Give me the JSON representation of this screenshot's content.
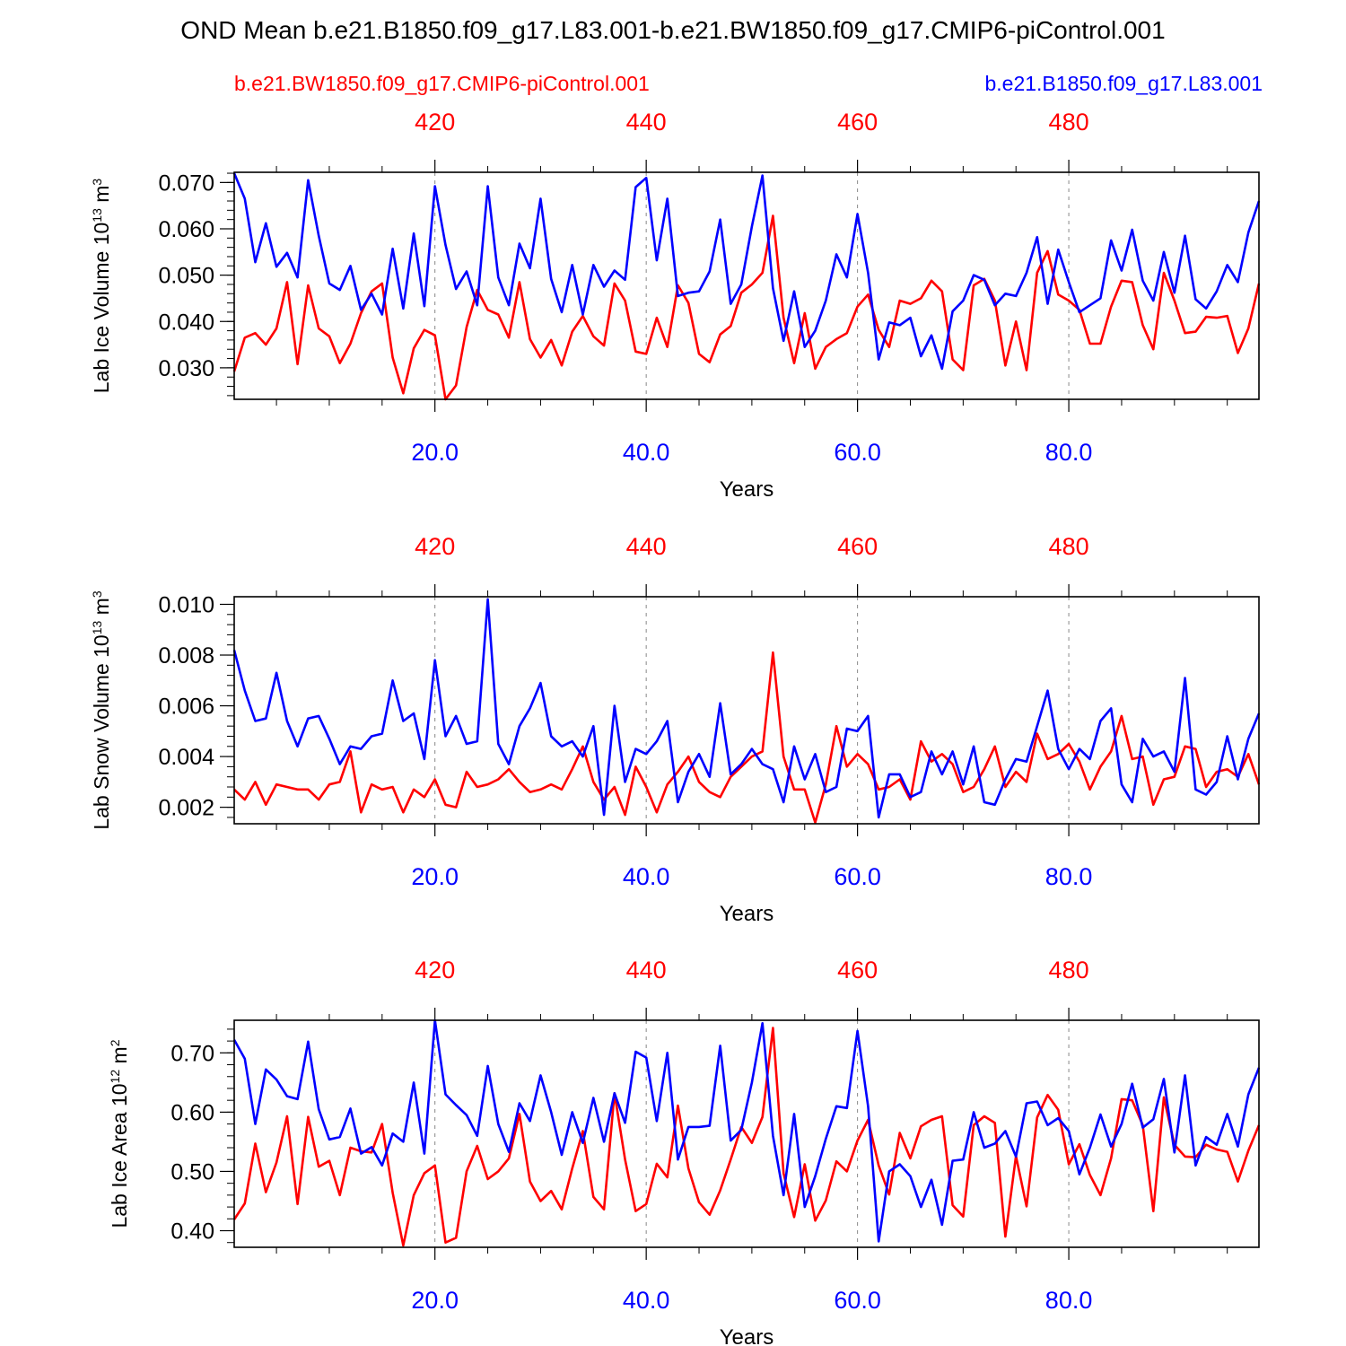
{
  "title": "OND Mean b.e21.B1850.f09_g17.L83.001-b.e21.BW1850.f09_g17.CMIP6-piControl.001",
  "legend": {
    "left_label": "b.e21.BW1850.f09_g17.CMIP6-piControl.001",
    "right_label": "b.e21.B1850.f09_g17.L83.001"
  },
  "colors": {
    "ctrl": "#ff0000",
    "exp": "#0000ff",
    "axis": "#000000",
    "grid": "#888888"
  },
  "chart_data": [
    {
      "type": "line",
      "ylabel_main": "Lab Ice Volume 10",
      "ylabel_exp": "13",
      "ylabel_unit": " m",
      "ylabel_unit_exp": "3",
      "xlabel": "Years",
      "xlim": [
        1,
        98
      ],
      "ylim": [
        0.0232,
        0.0722
      ],
      "yticks": [
        0.03,
        0.04,
        0.05,
        0.06,
        0.07
      ],
      "ytick_labels": [
        "0.030",
        "0.040",
        "0.050",
        "0.060",
        "0.070"
      ],
      "yminor_step": 0.002,
      "bottom_ticks": [
        20,
        40,
        60,
        80
      ],
      "bottom_tick_labels": [
        "20.0",
        "40.0",
        "60.0",
        "80.0"
      ],
      "top_tick_labels": [
        "420",
        "440",
        "460",
        "480"
      ],
      "series": [
        {
          "name": "b.e21.B1850.f09_g17.L83.001",
          "color": "#0000ff",
          "values": [
            0.072,
            0.0665,
            0.0528,
            0.0612,
            0.0518,
            0.0548,
            0.0495,
            0.0705,
            0.0585,
            0.0482,
            0.0468,
            0.052,
            0.0425,
            0.046,
            0.0415,
            0.0557,
            0.0428,
            0.059,
            0.0433,
            0.0692,
            0.0565,
            0.047,
            0.0508,
            0.0435,
            0.0692,
            0.0495,
            0.0435,
            0.0568,
            0.0515,
            0.0665,
            0.0492,
            0.042,
            0.0522,
            0.0415,
            0.0522,
            0.0475,
            0.051,
            0.049,
            0.069,
            0.071,
            0.0532,
            0.0665,
            0.0455,
            0.0462,
            0.0465,
            0.0508,
            0.062,
            0.0438,
            0.048,
            0.0605,
            0.0715,
            0.0472,
            0.0358,
            0.0465,
            0.0345,
            0.038,
            0.0445,
            0.0545,
            0.0495,
            0.0632,
            0.0505,
            0.0318,
            0.0398,
            0.0392,
            0.0408,
            0.0325,
            0.037,
            0.0298,
            0.0422,
            0.0445,
            0.05,
            0.049,
            0.0435,
            0.046,
            0.0455,
            0.0505,
            0.0582,
            0.0438,
            0.0555,
            0.0485,
            0.042,
            0.0435,
            0.045,
            0.0575,
            0.051,
            0.0598,
            0.0488,
            0.0445,
            0.055,
            0.0462,
            0.0585,
            0.0448,
            0.0428,
            0.0465,
            0.0522,
            0.0485,
            0.0592,
            0.066
          ]
        },
        {
          "name": "b.e21.BW1850.f09_g17.CMIP6-piControl.001",
          "color": "#ff0000",
          "values": [
            0.0292,
            0.0365,
            0.0375,
            0.035,
            0.0385,
            0.0485,
            0.0308,
            0.0478,
            0.0385,
            0.0368,
            0.031,
            0.0352,
            0.0418,
            0.0465,
            0.0482,
            0.0322,
            0.0245,
            0.0342,
            0.0382,
            0.037,
            0.0232,
            0.0262,
            0.0388,
            0.0468,
            0.0425,
            0.0415,
            0.0365,
            0.0485,
            0.0362,
            0.0322,
            0.036,
            0.0305,
            0.0378,
            0.0412,
            0.0368,
            0.0348,
            0.0482,
            0.0445,
            0.0335,
            0.033,
            0.0408,
            0.0345,
            0.0478,
            0.044,
            0.033,
            0.0312,
            0.0372,
            0.039,
            0.0462,
            0.048,
            0.0505,
            0.0628,
            0.0408,
            0.031,
            0.0418,
            0.0298,
            0.0345,
            0.0362,
            0.0375,
            0.0432,
            0.0458,
            0.0382,
            0.0345,
            0.0445,
            0.0438,
            0.045,
            0.0488,
            0.0465,
            0.0318,
            0.0295,
            0.0478,
            0.0492,
            0.0445,
            0.0305,
            0.04,
            0.0295,
            0.0505,
            0.0552,
            0.0458,
            0.0445,
            0.0425,
            0.0352,
            0.0352,
            0.0432,
            0.0488,
            0.0485,
            0.0392,
            0.034,
            0.0505,
            0.0445,
            0.0375,
            0.0378,
            0.041,
            0.0408,
            0.0412,
            0.0332,
            0.0385,
            0.0482
          ]
        }
      ]
    },
    {
      "type": "line",
      "ylabel_main": "Lab Snow Volume 10",
      "ylabel_exp": "13",
      "ylabel_unit": " m",
      "ylabel_unit_exp": "3",
      "xlabel": "Years",
      "xlim": [
        1,
        98
      ],
      "ylim": [
        0.00135,
        0.0103
      ],
      "yticks": [
        0.002,
        0.004,
        0.006,
        0.008,
        0.01
      ],
      "ytick_labels": [
        "0.002",
        "0.004",
        "0.006",
        "0.008",
        "0.010"
      ],
      "yminor_step": 0.0004,
      "bottom_ticks": [
        20,
        40,
        60,
        80
      ],
      "bottom_tick_labels": [
        "20.0",
        "40.0",
        "60.0",
        "80.0"
      ],
      "top_tick_labels": [
        "420",
        "440",
        "460",
        "480"
      ],
      "series": [
        {
          "name": "b.e21.B1850.f09_g17.L83.001",
          "color": "#0000ff",
          "values": [
            0.0082,
            0.0066,
            0.0054,
            0.0055,
            0.0073,
            0.0054,
            0.0044,
            0.0055,
            0.0056,
            0.0047,
            0.0037,
            0.0044,
            0.0043,
            0.0048,
            0.0049,
            0.007,
            0.0054,
            0.0057,
            0.0039,
            0.0078,
            0.0048,
            0.0056,
            0.0045,
            0.0046,
            0.0102,
            0.0045,
            0.0037,
            0.0052,
            0.0059,
            0.0069,
            0.0048,
            0.0044,
            0.0046,
            0.004,
            0.0052,
            0.0017,
            0.006,
            0.003,
            0.0043,
            0.0041,
            0.0046,
            0.0054,
            0.0022,
            0.0034,
            0.0041,
            0.0032,
            0.0061,
            0.0033,
            0.0037,
            0.0043,
            0.0037,
            0.0035,
            0.0022,
            0.0044,
            0.0031,
            0.0041,
            0.0026,
            0.0028,
            0.0051,
            0.005,
            0.0056,
            0.0016,
            0.0033,
            0.0033,
            0.0024,
            0.0026,
            0.0042,
            0.0033,
            0.0042,
            0.0029,
            0.0044,
            0.0022,
            0.0021,
            0.0031,
            0.0039,
            0.0038,
            0.0052,
            0.0066,
            0.0043,
            0.0035,
            0.0043,
            0.0039,
            0.0054,
            0.0059,
            0.0029,
            0.0022,
            0.0047,
            0.004,
            0.0042,
            0.0034,
            0.0071,
            0.0027,
            0.0025,
            0.003,
            0.0048,
            0.0031,
            0.0047,
            0.0057
          ]
        },
        {
          "name": "b.e21.BW1850.f09_g17.CMIP6-piControl.001",
          "color": "#ff0000",
          "values": [
            0.0027,
            0.0023,
            0.003,
            0.0021,
            0.0029,
            0.0028,
            0.0027,
            0.0027,
            0.0023,
            0.0029,
            0.003,
            0.0042,
            0.0018,
            0.0029,
            0.0027,
            0.0028,
            0.0018,
            0.0027,
            0.0024,
            0.0031,
            0.0021,
            0.002,
            0.0034,
            0.0028,
            0.0029,
            0.0031,
            0.0035,
            0.003,
            0.0026,
            0.0027,
            0.0029,
            0.0027,
            0.0035,
            0.0044,
            0.003,
            0.0023,
            0.0028,
            0.0017,
            0.0036,
            0.0028,
            0.0018,
            0.0029,
            0.0034,
            0.004,
            0.003,
            0.0026,
            0.0024,
            0.0032,
            0.0036,
            0.004,
            0.0042,
            0.0081,
            0.004,
            0.0027,
            0.0027,
            0.0014,
            0.0029,
            0.0052,
            0.0036,
            0.0041,
            0.0037,
            0.0027,
            0.0028,
            0.0031,
            0.0023,
            0.0046,
            0.0038,
            0.0041,
            0.0037,
            0.0026,
            0.0028,
            0.0035,
            0.0044,
            0.0028,
            0.0034,
            0.003,
            0.0049,
            0.0039,
            0.0041,
            0.0045,
            0.0038,
            0.0027,
            0.0036,
            0.0042,
            0.0056,
            0.0039,
            0.004,
            0.0021,
            0.0031,
            0.0032,
            0.0044,
            0.0043,
            0.0028,
            0.0034,
            0.0035,
            0.0032,
            0.0041,
            0.0029
          ]
        }
      ]
    },
    {
      "type": "line",
      "ylabel_main": "Lab Ice Area 10",
      "ylabel_exp": "12",
      "ylabel_unit": " m",
      "ylabel_unit_exp": "2",
      "xlabel": "Years",
      "xlim": [
        1,
        98
      ],
      "ylim": [
        0.372,
        0.755
      ],
      "yticks": [
        0.4,
        0.5,
        0.6,
        0.7
      ],
      "ytick_labels": [
        "0.40",
        "0.50",
        "0.60",
        "0.70"
      ],
      "yminor_step": 0.02,
      "bottom_ticks": [
        20,
        40,
        60,
        80
      ],
      "bottom_tick_labels": [
        "20.0",
        "40.0",
        "60.0",
        "80.0"
      ],
      "top_tick_labels": [
        "420",
        "440",
        "460",
        "480"
      ],
      "series": [
        {
          "name": "b.e21.B1850.f09_g17.L83.001",
          "color": "#0000ff",
          "values": [
            0.722,
            0.69,
            0.58,
            0.672,
            0.655,
            0.627,
            0.622,
            0.719,
            0.605,
            0.554,
            0.558,
            0.606,
            0.53,
            0.541,
            0.51,
            0.564,
            0.55,
            0.65,
            0.53,
            0.755,
            0.63,
            0.612,
            0.595,
            0.56,
            0.678,
            0.58,
            0.533,
            0.615,
            0.585,
            0.662,
            0.6,
            0.528,
            0.6,
            0.548,
            0.624,
            0.55,
            0.632,
            0.582,
            0.702,
            0.692,
            0.585,
            0.7,
            0.52,
            0.575,
            0.575,
            0.577,
            0.712,
            0.552,
            0.57,
            0.65,
            0.75,
            0.56,
            0.46,
            0.597,
            0.44,
            0.492,
            0.555,
            0.61,
            0.607,
            0.737,
            0.61,
            0.382,
            0.5,
            0.512,
            0.492,
            0.44,
            0.486,
            0.41,
            0.518,
            0.52,
            0.6,
            0.54,
            0.547,
            0.568,
            0.525,
            0.615,
            0.618,
            0.578,
            0.59,
            0.568,
            0.495,
            0.54,
            0.596,
            0.542,
            0.58,
            0.648,
            0.574,
            0.588,
            0.656,
            0.532,
            0.662,
            0.51,
            0.558,
            0.545,
            0.597,
            0.542,
            0.63,
            0.675
          ]
        },
        {
          "name": "b.e21.BW1850.f09_g17.CMIP6-piControl.001",
          "color": "#ff0000",
          "values": [
            0.419,
            0.446,
            0.547,
            0.465,
            0.515,
            0.593,
            0.445,
            0.592,
            0.508,
            0.518,
            0.46,
            0.54,
            0.534,
            0.532,
            0.58,
            0.464,
            0.375,
            0.46,
            0.497,
            0.51,
            0.38,
            0.388,
            0.5,
            0.543,
            0.487,
            0.5,
            0.522,
            0.597,
            0.483,
            0.45,
            0.467,
            0.436,
            0.505,
            0.568,
            0.457,
            0.436,
            0.632,
            0.52,
            0.433,
            0.445,
            0.513,
            0.49,
            0.611,
            0.505,
            0.448,
            0.427,
            0.468,
            0.52,
            0.575,
            0.548,
            0.592,
            0.742,
            0.497,
            0.423,
            0.512,
            0.417,
            0.451,
            0.517,
            0.5,
            0.552,
            0.587,
            0.51,
            0.461,
            0.565,
            0.522,
            0.576,
            0.587,
            0.593,
            0.443,
            0.424,
            0.578,
            0.593,
            0.582,
            0.39,
            0.526,
            0.441,
            0.591,
            0.629,
            0.604,
            0.512,
            0.546,
            0.494,
            0.46,
            0.522,
            0.622,
            0.62,
            0.578,
            0.433,
            0.625,
            0.545,
            0.525,
            0.524,
            0.545,
            0.537,
            0.533,
            0.483,
            0.535,
            0.578
          ]
        }
      ]
    }
  ]
}
